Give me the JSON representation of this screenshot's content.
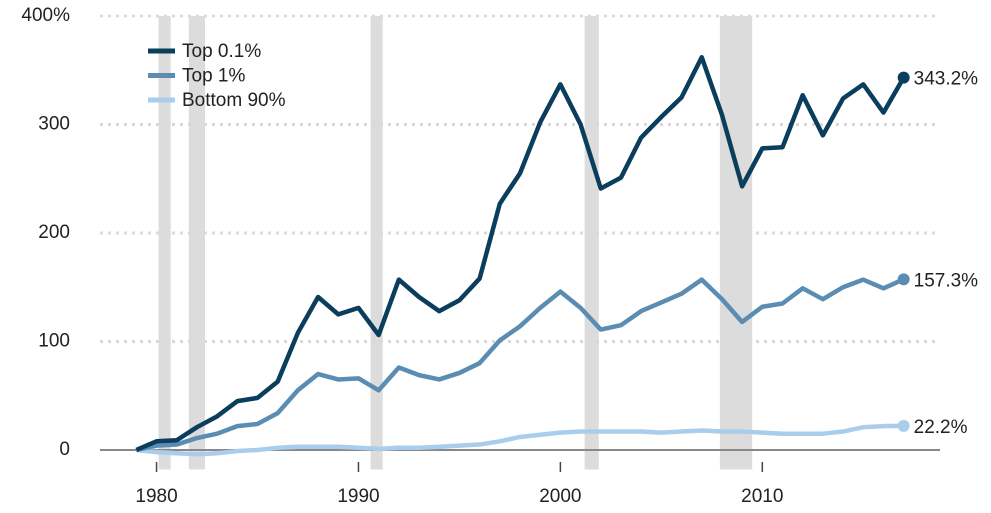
{
  "chart_data": {
    "type": "line",
    "x": [
      1979,
      1980,
      1981,
      1982,
      1983,
      1984,
      1985,
      1986,
      1987,
      1988,
      1989,
      1990,
      1991,
      1992,
      1993,
      1994,
      1995,
      1996,
      1997,
      1998,
      1999,
      2000,
      2001,
      2002,
      2003,
      2004,
      2005,
      2006,
      2007,
      2008,
      2009,
      2010,
      2011,
      2012,
      2013,
      2014,
      2015,
      2016,
      2017
    ],
    "series": [
      {
        "name": "Top 0.1%",
        "color": "#0b3d5c",
        "values": [
          0,
          8,
          9,
          21,
          31,
          45,
          48,
          63,
          108,
          141,
          125,
          131,
          106,
          157,
          141,
          128,
          138,
          158,
          227,
          255,
          302,
          337,
          300,
          241,
          251,
          288,
          307,
          325,
          362,
          309,
          243,
          278,
          279,
          327,
          290,
          324,
          337,
          311,
          343.2
        ],
        "value_labels": [
          null,
          null,
          null,
          null,
          null,
          null,
          null,
          null,
          null,
          null,
          null,
          null,
          null,
          null,
          null,
          null,
          null,
          null,
          null,
          null,
          null,
          null,
          null,
          null,
          null,
          null,
          null,
          null,
          null,
          null,
          null,
          null,
          null,
          null,
          null,
          null,
          null,
          null,
          "343.2%"
        ]
      },
      {
        "name": "Top 1%",
        "color": "#5b8cb2",
        "values": [
          0,
          4,
          5,
          11,
          15,
          22,
          24,
          34,
          55,
          70,
          65,
          66,
          55,
          76,
          69,
          65,
          71,
          80,
          101,
          114,
          131,
          146,
          131,
          111,
          115,
          128,
          136,
          144,
          157,
          139,
          118,
          132,
          135,
          149,
          139,
          150,
          157,
          149,
          157.3
        ],
        "value_labels": [
          null,
          null,
          null,
          null,
          null,
          null,
          null,
          null,
          null,
          null,
          null,
          null,
          null,
          null,
          null,
          null,
          null,
          null,
          null,
          null,
          null,
          null,
          null,
          null,
          null,
          null,
          null,
          null,
          null,
          null,
          null,
          null,
          null,
          null,
          null,
          null,
          null,
          null,
          "157.3%"
        ]
      },
      {
        "name": "Bottom 90%",
        "color": "#a9cdea",
        "values": [
          0,
          -2,
          -3,
          -4,
          -3,
          -1,
          0,
          2,
          3,
          3,
          3,
          2,
          1,
          2,
          2,
          3,
          4,
          5,
          8,
          12,
          14,
          16,
          17,
          17,
          17,
          17,
          16,
          17,
          18,
          17,
          17,
          16,
          15,
          15,
          15,
          17,
          21,
          22,
          22.2
        ],
        "value_labels": [
          null,
          null,
          null,
          null,
          null,
          null,
          null,
          null,
          null,
          null,
          null,
          null,
          null,
          null,
          null,
          null,
          null,
          null,
          null,
          null,
          null,
          null,
          null,
          null,
          null,
          null,
          null,
          null,
          null,
          null,
          null,
          null,
          null,
          null,
          null,
          null,
          null,
          null,
          "22.2%"
        ]
      }
    ],
    "recessions": [
      [
        1980.1,
        1980.7
      ],
      [
        1981.6,
        1982.4
      ],
      [
        1990.6,
        1991.2
      ],
      [
        2001.2,
        2001.9
      ],
      [
        2007.9,
        2009.5
      ]
    ],
    "recession_color": "#dcdcdc",
    "xlim": [
      1977.2,
      2018.8
    ],
    "xticks": [
      1980,
      1990,
      2000,
      2010
    ],
    "ylim": [
      -18,
      406
    ],
    "yticks": [
      0,
      100,
      200,
      300,
      {
        "value": 400,
        "label": "400%"
      }
    ],
    "grid": true,
    "legend": "upper left"
  }
}
